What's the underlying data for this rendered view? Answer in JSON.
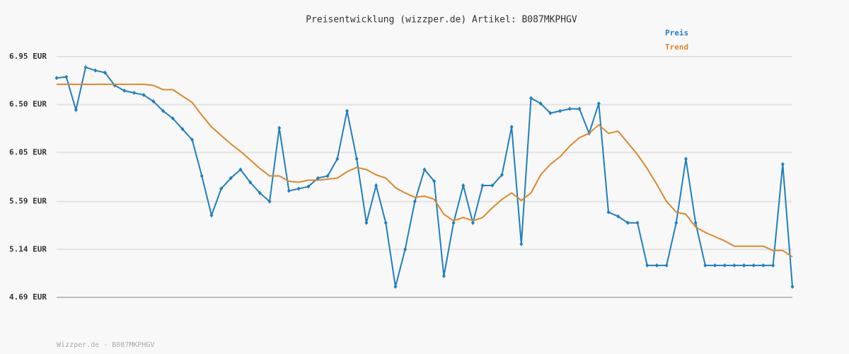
{
  "chart_data": {
    "type": "line",
    "title": "Preisentwicklung (wizzper.de) Artikel: B087MKPHGV",
    "footer": "Wizzper.de - B087MKPHGV",
    "ylim": [
      4.69,
      6.95
    ],
    "yticks": [
      {
        "value": 4.69,
        "label": "4.69 EUR"
      },
      {
        "value": 5.14,
        "label": "5.14 EUR"
      },
      {
        "value": 5.59,
        "label": "5.59 EUR"
      },
      {
        "value": 6.05,
        "label": "6.05 EUR"
      },
      {
        "value": 6.5,
        "label": "6.50 EUR"
      },
      {
        "value": 6.95,
        "label": "6.95 EUR"
      }
    ],
    "grid": true,
    "legend": "top-right",
    "series": [
      {
        "name": "Preis",
        "color": "#1f7fbf",
        "markers": true,
        "values": [
          6.75,
          6.76,
          6.45,
          6.85,
          6.82,
          6.8,
          6.68,
          6.63,
          6.61,
          6.59,
          6.53,
          6.44,
          6.37,
          6.27,
          6.17,
          5.83,
          5.46,
          5.71,
          5.81,
          5.89,
          5.77,
          5.67,
          5.59,
          6.28,
          5.69,
          5.71,
          5.73,
          5.81,
          5.83,
          5.99,
          6.44,
          5.99,
          5.39,
          5.74,
          5.39,
          4.79,
          5.14,
          5.59,
          5.89,
          5.78,
          4.89,
          5.39,
          5.74,
          5.39,
          5.74,
          5.74,
          5.84,
          6.29,
          5.19,
          6.56,
          6.51,
          6.42,
          6.44,
          6.46,
          6.46,
          6.23,
          6.51,
          5.49,
          5.45,
          5.39,
          5.39,
          4.99,
          4.99,
          4.99,
          5.39,
          5.99,
          5.39,
          4.99,
          4.99,
          4.99,
          4.99,
          4.99,
          4.99,
          4.99,
          4.99,
          5.94,
          4.79
        ]
      },
      {
        "name": "Trend",
        "color": "#d9892b",
        "markers": false,
        "values": [
          6.69,
          6.69,
          6.69,
          6.69,
          6.69,
          6.69,
          6.69,
          6.69,
          6.69,
          6.69,
          6.68,
          6.64,
          6.64,
          6.58,
          6.52,
          6.4,
          6.29,
          6.21,
          6.13,
          6.06,
          5.98,
          5.9,
          5.83,
          5.83,
          5.78,
          5.77,
          5.79,
          5.79,
          5.8,
          5.81,
          5.87,
          5.91,
          5.89,
          5.84,
          5.81,
          5.72,
          5.67,
          5.63,
          5.64,
          5.61,
          5.47,
          5.41,
          5.44,
          5.41,
          5.44,
          5.53,
          5.61,
          5.67,
          5.6,
          5.67,
          5.84,
          5.94,
          6.01,
          6.11,
          6.19,
          6.23,
          6.31,
          6.23,
          6.25,
          6.14,
          6.03,
          5.9,
          5.75,
          5.59,
          5.49,
          5.47,
          5.35,
          5.3,
          5.26,
          5.22,
          5.17,
          5.17,
          5.17,
          5.17,
          5.13,
          5.13,
          5.07
        ]
      }
    ]
  }
}
